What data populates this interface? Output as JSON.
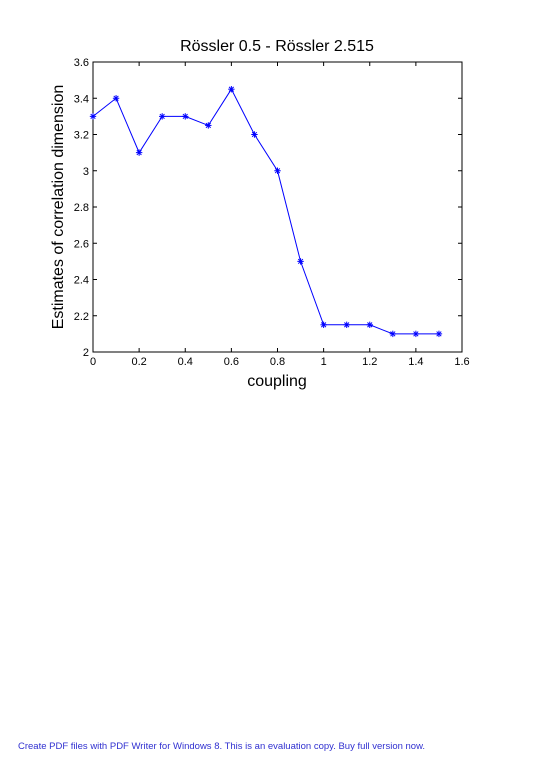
{
  "chart_data": {
    "type": "line",
    "title": "Rössler 0.5 - Rössler 2.515",
    "xlabel": "coupling",
    "ylabel": "Estimates of correlation dimension",
    "xlim": [
      0,
      1.6
    ],
    "ylim": [
      2,
      3.6
    ],
    "x_ticks": [
      "0",
      "0.2",
      "0.4",
      "0.6",
      "0.8",
      "1",
      "1.2",
      "1.4",
      "1.6"
    ],
    "y_ticks": [
      "2",
      "2.2",
      "2.4",
      "2.6",
      "2.8",
      "3",
      "3.2",
      "3.4",
      "3.6"
    ],
    "grid": false,
    "legend": "none",
    "marker": "asterisk",
    "series": [
      {
        "color": "#0000ff",
        "x": [
          0,
          0.1,
          0.2,
          0.3,
          0.4,
          0.5,
          0.6,
          0.7,
          0.8,
          0.9,
          1.0,
          1.1,
          1.2,
          1.3,
          1.4,
          1.5
        ],
        "y": [
          3.3,
          3.4,
          3.1,
          3.3,
          3.3,
          3.25,
          3.45,
          3.2,
          3.0,
          2.5,
          2.15,
          2.15,
          2.15,
          2.1,
          2.1,
          2.1
        ]
      }
    ]
  },
  "footer": {
    "text": "Create PDF files with PDF Writer for Windows 8. This is an evaluation copy. Buy full version now.",
    "color": "#3030d0"
  }
}
